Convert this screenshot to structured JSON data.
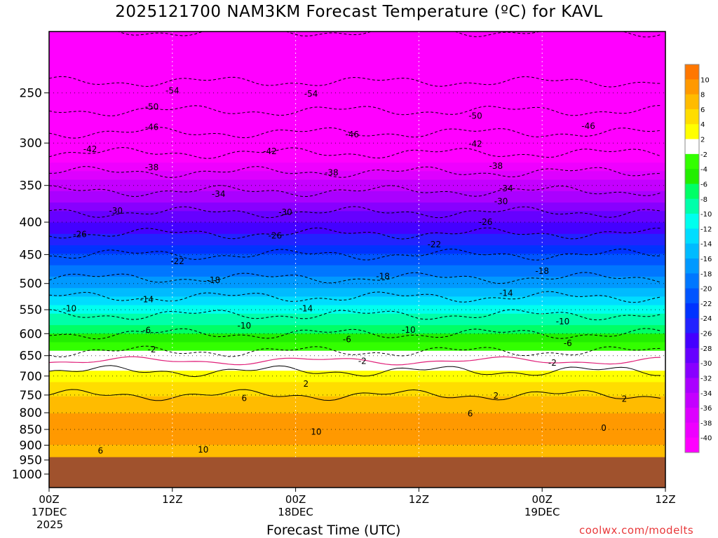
{
  "chart_data": {
    "type": "heatmap",
    "title": "2025121700 NAM3KM Forecast Temperature (ºC) for KAVL",
    "xlabel": "Forecast Time (UTC)",
    "ylabel": "",
    "credit": "coolwx.com/modelts",
    "year_label": "2025",
    "x_ticks": [
      {
        "hour": 0,
        "label": "00Z",
        "sub": "17DEC"
      },
      {
        "hour": 12,
        "label": "12Z",
        "sub": ""
      },
      {
        "hour": 24,
        "label": "00Z",
        "sub": "18DEC"
      },
      {
        "hour": 36,
        "label": "12Z",
        "sub": ""
      },
      {
        "hour": 48,
        "label": "00Z",
        "sub": "19DEC"
      },
      {
        "hour": 60,
        "label": "12Z",
        "sub": ""
      }
    ],
    "y_ticks": [
      250,
      300,
      350,
      400,
      450,
      500,
      550,
      600,
      650,
      700,
      750,
      800,
      850,
      900,
      950,
      1000
    ],
    "y_scale": "log-pressure",
    "y_range_hPa": [
      200,
      1050
    ],
    "x_range_hours": [
      0,
      60
    ],
    "surface_pressure_hPa": 940,
    "colorbar": {
      "levels": [
        -40,
        -38,
        -36,
        -34,
        -32,
        -30,
        -28,
        -26,
        -24,
        -22,
        -20,
        -18,
        -16,
        -14,
        -12,
        -10,
        -8,
        -6,
        -4,
        -2,
        2,
        4,
        6,
        8,
        10
      ],
      "colors": [
        "#ff00ff",
        "#ee00ff",
        "#dd00ff",
        "#c400ff",
        "#aa00ff",
        "#8800ff",
        "#6600ff",
        "#4400ff",
        "#2222ff",
        "#0033ff",
        "#0055ff",
        "#0077ff",
        "#0099ff",
        "#00bbff",
        "#00ddff",
        "#00ffee",
        "#00ffaa",
        "#00ff66",
        "#22ee00",
        "#33ff00",
        "#ffffff",
        "#ffff00",
        "#ffdd00",
        "#ffbb00",
        "#ff9900",
        "#ff7700"
      ]
    },
    "temperature_profile": [
      {
        "p": 200,
        "t": -58
      },
      {
        "p": 250,
        "t": -53
      },
      {
        "p": 300,
        "t": -44
      },
      {
        "p": 350,
        "t": -35
      },
      {
        "p": 400,
        "t": -28
      },
      {
        "p": 450,
        "t": -22
      },
      {
        "p": 500,
        "t": -17
      },
      {
        "p": 550,
        "t": -11
      },
      {
        "p": 600,
        "t": -6
      },
      {
        "p": 650,
        "t": -1
      },
      {
        "p": 700,
        "t": 3
      },
      {
        "p": 750,
        "t": 6
      },
      {
        "p": 800,
        "t": 8
      },
      {
        "p": 850,
        "t": 9
      },
      {
        "p": 900,
        "t": 8
      },
      {
        "p": 950,
        "t": 7
      }
    ],
    "contour_labels": [
      {
        "text": "-54",
        "hour": 12,
        "p": 248
      },
      {
        "text": "-54",
        "hour": 25.5,
        "p": 251
      },
      {
        "text": "-50",
        "hour": 10,
        "p": 263
      },
      {
        "text": "-50",
        "hour": 41.5,
        "p": 272
      },
      {
        "text": "-46",
        "hour": 10,
        "p": 283
      },
      {
        "text": "-46",
        "hour": 29.5,
        "p": 291
      },
      {
        "text": "-46",
        "hour": 52.5,
        "p": 282
      },
      {
        "text": "-42",
        "hour": 4,
        "p": 307
      },
      {
        "text": "-42",
        "hour": 21.5,
        "p": 309
      },
      {
        "text": "-42",
        "hour": 41.5,
        "p": 301
      },
      {
        "text": "-38",
        "hour": 10,
        "p": 328
      },
      {
        "text": "-38",
        "hour": 27.5,
        "p": 334
      },
      {
        "text": "-38",
        "hour": 43.5,
        "p": 326
      },
      {
        "text": "-34",
        "hour": 16.5,
        "p": 361
      },
      {
        "text": "-34",
        "hour": 44.5,
        "p": 354
      },
      {
        "text": "-30",
        "hour": 6.5,
        "p": 384
      },
      {
        "text": "-30",
        "hour": 23,
        "p": 386
      },
      {
        "text": "-30",
        "hour": 44,
        "p": 371
      },
      {
        "text": "-26",
        "hour": 3,
        "p": 418
      },
      {
        "text": "-26",
        "hour": 22,
        "p": 420
      },
      {
        "text": "-26",
        "hour": 42.5,
        "p": 400
      },
      {
        "text": "-22",
        "hour": 12.5,
        "p": 461
      },
      {
        "text": "-22",
        "hour": 37.5,
        "p": 434
      },
      {
        "text": "-18",
        "hour": 16,
        "p": 494
      },
      {
        "text": "-18",
        "hour": 32.5,
        "p": 487
      },
      {
        "text": "-18",
        "hour": 48,
        "p": 478
      },
      {
        "text": "-14",
        "hour": 9.5,
        "p": 530
      },
      {
        "text": "-14",
        "hour": 25,
        "p": 548
      },
      {
        "text": "-14",
        "hour": 44.5,
        "p": 518
      },
      {
        "text": "-10",
        "hour": 2,
        "p": 548
      },
      {
        "text": "-10",
        "hour": 19,
        "p": 583
      },
      {
        "text": "-10",
        "hour": 35,
        "p": 592
      },
      {
        "text": "-10",
        "hour": 50,
        "p": 574
      },
      {
        "text": "-6",
        "hour": 9.5,
        "p": 593
      },
      {
        "text": "-6",
        "hour": 29,
        "p": 613
      },
      {
        "text": "-6",
        "hour": 50.5,
        "p": 621
      },
      {
        "text": "-2",
        "hour": 10,
        "p": 636
      },
      {
        "text": "-2",
        "hour": 30.5,
        "p": 663
      },
      {
        "text": "-2",
        "hour": 49,
        "p": 667
      },
      {
        "text": "2",
        "hour": 25,
        "p": 720
      },
      {
        "text": "2",
        "hour": 43.5,
        "p": 752
      },
      {
        "text": "2",
        "hour": 56,
        "p": 761
      },
      {
        "text": "6",
        "hour": 19,
        "p": 759
      },
      {
        "text": "6",
        "hour": 41,
        "p": 803
      },
      {
        "text": "6",
        "hour": 5,
        "p": 919
      },
      {
        "text": "10",
        "hour": 26,
        "p": 857
      },
      {
        "text": "10",
        "hour": 15,
        "p": 915
      },
      {
        "text": "0",
        "hour": 54,
        "p": 846
      }
    ]
  }
}
